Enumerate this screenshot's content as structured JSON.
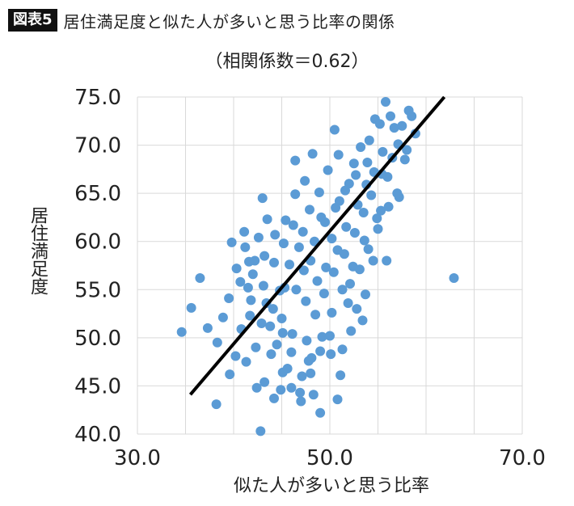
{
  "header": {
    "badge": "図表5",
    "title": "居住満足度と似た人が多いと思う比率の関係",
    "subtitle": "（相関係数＝0.62）"
  },
  "colors": {
    "points": "#5b9bd5",
    "trendline": "#000000",
    "grid": "#d9d9d9"
  },
  "chart_data": {
    "type": "scatter",
    "title": "居住満足度と似た人が多いと思う比率の関係",
    "subtitle": "（相関係数＝0.62）",
    "xlabel": "似た人が多いと思う比率",
    "ylabel": "居住満足度",
    "xlim": [
      30,
      70
    ],
    "ylim": [
      40,
      75
    ],
    "x_ticks": [
      "30.0",
      "50.0",
      "70.0"
    ],
    "y_ticks": [
      "40.0",
      "45.0",
      "50.0",
      "55.0",
      "60.0",
      "65.0",
      "70.0",
      "75.0"
    ],
    "grid": true,
    "trendline": {
      "x": [
        35.5,
        61.9
      ],
      "y": [
        44.1,
        75.0
      ]
    },
    "points": [
      [
        34.6,
        50.6
      ],
      [
        35.6,
        53.1
      ],
      [
        36.5,
        56.2
      ],
      [
        37.3,
        51.0
      ],
      [
        38.2,
        43.1
      ],
      [
        38.3,
        49.5
      ],
      [
        38.9,
        52.1
      ],
      [
        39.5,
        54.1
      ],
      [
        39.6,
        46.2
      ],
      [
        39.8,
        59.9
      ],
      [
        40.2,
        48.1
      ],
      [
        40.3,
        57.2
      ],
      [
        40.8,
        50.9
      ],
      [
        41.2,
        59.4
      ],
      [
        41.3,
        47.5
      ],
      [
        41.5,
        55.2
      ],
      [
        41.7,
        52.3
      ],
      [
        42.3,
        49.0
      ],
      [
        42.4,
        44.8
      ],
      [
        42.8,
        40.3
      ],
      [
        43.0,
        64.5
      ],
      [
        43.2,
        45.4
      ],
      [
        43.4,
        53.6
      ],
      [
        44.2,
        43.7
      ],
      [
        44.9,
        44.6
      ],
      [
        45.1,
        46.4
      ],
      [
        45.3,
        55.2
      ],
      [
        46.0,
        44.8
      ],
      [
        46.4,
        68.4
      ],
      [
        47.0,
        43.4
      ],
      [
        47.8,
        47.6
      ],
      [
        48.2,
        69.1
      ],
      [
        48.3,
        44.1
      ],
      [
        49.0,
        42.2
      ],
      [
        50.1,
        48.3
      ],
      [
        50.5,
        71.6
      ],
      [
        50.8,
        43.6
      ],
      [
        51.1,
        46.1
      ],
      [
        51.3,
        48.8
      ],
      [
        52.2,
        50.7
      ],
      [
        52.8,
        53.0
      ],
      [
        53.4,
        51.8
      ],
      [
        53.7,
        54.5
      ],
      [
        54.5,
        58.0
      ],
      [
        54.7,
        72.7
      ],
      [
        55.3,
        63.2
      ],
      [
        55.8,
        74.5
      ],
      [
        56.7,
        71.8
      ],
      [
        57.2,
        64.6
      ],
      [
        57.8,
        68.5
      ],
      [
        58.2,
        73.6
      ],
      [
        58.9,
        71.2
      ],
      [
        62.9,
        56.2
      ],
      [
        55.9,
        58.0
      ],
      [
        46.5,
        55.0
      ],
      [
        47.2,
        61.0
      ],
      [
        48.0,
        58.0
      ],
      [
        49.1,
        62.5
      ],
      [
        50.2,
        60.3
      ],
      [
        51.0,
        64.2
      ],
      [
        52.0,
        66.0
      ],
      [
        52.5,
        68.1
      ],
      [
        53.2,
        69.8
      ],
      [
        54.1,
        70.5
      ],
      [
        45.0,
        52.0
      ],
      [
        44.5,
        49.3
      ],
      [
        46.1,
        50.4
      ],
      [
        47.5,
        53.8
      ],
      [
        48.7,
        55.9
      ],
      [
        49.6,
        57.3
      ],
      [
        50.8,
        59.1
      ],
      [
        51.7,
        61.5
      ],
      [
        52.9,
        63.8
      ],
      [
        53.8,
        65.9
      ],
      [
        54.6,
        67.2
      ],
      [
        55.5,
        69.3
      ],
      [
        43.8,
        51.2
      ],
      [
        44.8,
        54.9
      ],
      [
        45.8,
        57.6
      ],
      [
        46.8,
        59.4
      ],
      [
        47.9,
        63.3
      ],
      [
        48.9,
        65.1
      ],
      [
        49.8,
        67.4
      ],
      [
        50.9,
        69.0
      ],
      [
        42.0,
        56.6
      ],
      [
        43.2,
        58.5
      ],
      [
        44.3,
        60.7
      ],
      [
        45.4,
        62.2
      ],
      [
        46.4,
        64.9
      ],
      [
        47.4,
        66.3
      ],
      [
        55.2,
        72.2
      ],
      [
        56.3,
        73.0
      ],
      [
        57.1,
        70.1
      ],
      [
        56.0,
        66.7
      ],
      [
        54.9,
        62.4
      ],
      [
        53.6,
        60.1
      ],
      [
        52.4,
        57.4
      ],
      [
        51.3,
        55.0
      ],
      [
        50.2,
        52.6
      ],
      [
        49.2,
        50.1
      ],
      [
        48.1,
        47.9
      ],
      [
        47.1,
        46.0
      ],
      [
        46.0,
        48.5
      ],
      [
        45.1,
        50.5
      ],
      [
        44.1,
        53.0
      ],
      [
        43.1,
        55.4
      ],
      [
        42.2,
        58.0
      ],
      [
        41.1,
        61.0
      ],
      [
        41.8,
        53.9
      ],
      [
        42.9,
        51.5
      ],
      [
        43.9,
        48.3
      ],
      [
        45.6,
        46.8
      ],
      [
        47.6,
        49.7
      ],
      [
        48.5,
        52.4
      ],
      [
        49.4,
        54.6
      ],
      [
        50.4,
        56.8
      ],
      [
        51.5,
        58.7
      ],
      [
        52.6,
        60.9
      ],
      [
        53.5,
        63.0
      ],
      [
        54.3,
        64.8
      ],
      [
        55.4,
        67.0
      ],
      [
        56.5,
        68.7
      ],
      [
        57.5,
        72.0
      ],
      [
        58.5,
        73.0
      ],
      [
        47.3,
        57.0
      ],
      [
        48.4,
        60.0
      ],
      [
        49.5,
        62.0
      ],
      [
        50.6,
        63.5
      ],
      [
        51.6,
        65.3
      ],
      [
        52.7,
        66.9
      ],
      [
        53.9,
        68.2
      ],
      [
        46.2,
        61.7
      ],
      [
        45.2,
        59.8
      ],
      [
        44.2,
        57.8
      ],
      [
        43.5,
        62.3
      ],
      [
        42.6,
        60.4
      ],
      [
        41.6,
        57.9
      ],
      [
        40.7,
        55.8
      ],
      [
        51.9,
        53.6
      ],
      [
        52.1,
        55.6
      ],
      [
        53.1,
        57.1
      ],
      [
        54.0,
        59.2
      ],
      [
        55.0,
        61.3
      ],
      [
        56.1,
        63.6
      ],
      [
        57.0,
        65.0
      ],
      [
        58.0,
        69.5
      ],
      [
        50.0,
        50.2
      ],
      [
        49.0,
        48.6
      ],
      [
        48.0,
        46.3
      ],
      [
        46.9,
        44.3
      ]
    ]
  }
}
